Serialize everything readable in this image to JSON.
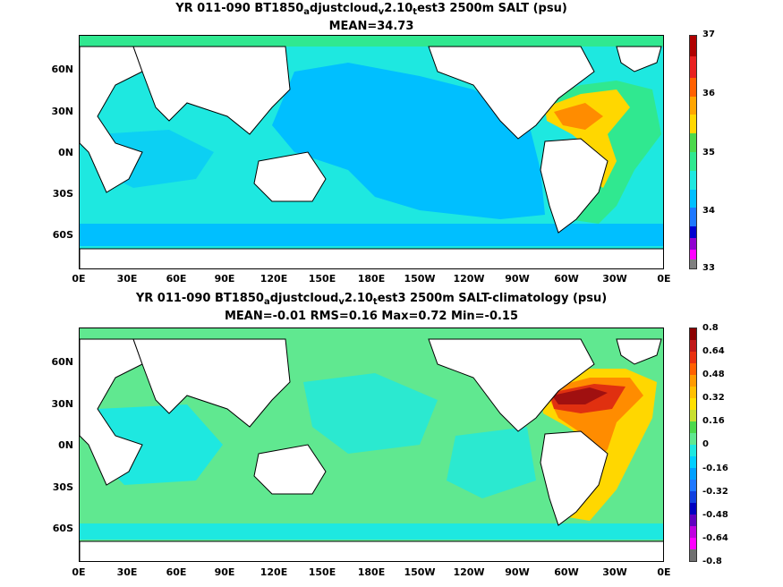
{
  "panel1": {
    "title_parts": [
      "YR 011-090 BT1850",
      "a",
      "djustcloud",
      "v",
      "2.10",
      "t",
      "est3 2500m SALT (psu)"
    ],
    "stats": "MEAN=34.73",
    "colorbar_ticks": [
      "37",
      "36",
      "35",
      "34",
      "33"
    ]
  },
  "panel2": {
    "title_parts": [
      "YR 011-090 BT1850",
      "a",
      "djustcloud",
      "v",
      "2.10",
      "t",
      "est3 2500m SALT-climatology (psu)"
    ],
    "stats": "MEAN=-0.01   RMS=0.16   Max=0.72   Min=-0.15",
    "colorbar_ticks": [
      "0.8",
      "0.64",
      "0.48",
      "0.32",
      "0.16",
      "0",
      "-0.16",
      "-0.32",
      "-0.48",
      "-0.64",
      "-0.8"
    ]
  },
  "axes": {
    "lat_labels": [
      "60N",
      "30N",
      "0N",
      "30S",
      "60S"
    ],
    "lon_labels": [
      "0E",
      "30E",
      "60E",
      "90E",
      "120E",
      "150E",
      "180E",
      "150W",
      "120W",
      "90W",
      "60W",
      "30W",
      "0E"
    ]
  },
  "colors": {
    "land": "#ffffff",
    "coast": "#000000",
    "salt_34_6": "#00bfff",
    "salt_34_8": "#1ee8e0",
    "salt_35_0": "#30e890",
    "salt_35_2": "#4cd94c",
    "salt_35_6": "#ffd700",
    "diff_0": "#1ee8e0",
    "diff_0_16": "#60e890",
    "diff_0_32": "#ffd700",
    "diff_0_48": "#ff8c00",
    "diff_0_64": "#e03010",
    "diff_0_8": "#a01010"
  }
}
